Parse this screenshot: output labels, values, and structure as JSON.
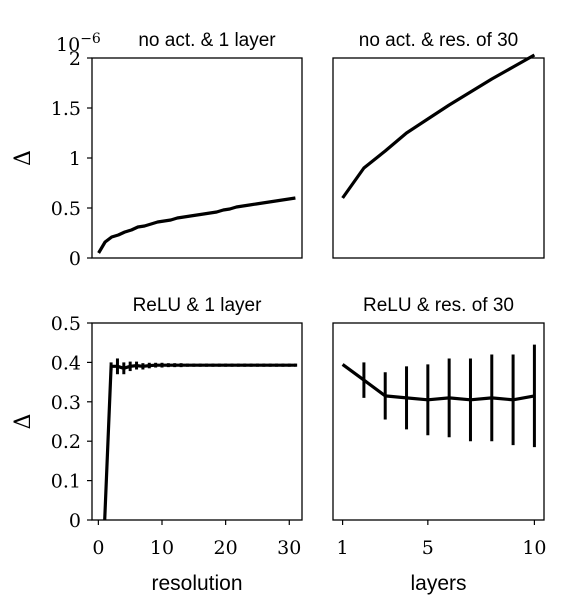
{
  "chart_data": [
    {
      "type": "line",
      "title": "no act. & 1 layer",
      "xlabel": "",
      "ylabel": "Δ",
      "scale_label": "10^{-6}",
      "scale_base": "10",
      "scale_exp": "−6",
      "xlim": [
        0,
        32
      ],
      "ylim": [
        0,
        2.0
      ],
      "xticks": [],
      "yticks": [
        0,
        0.5,
        1,
        1.5,
        2
      ],
      "ytick_labels": [
        "0",
        "0.5",
        "1",
        "1.5",
        "2"
      ],
      "series": [
        {
          "x": [
            1,
            2,
            3,
            4,
            5,
            6,
            7,
            8,
            9,
            10,
            11,
            12,
            13,
            14,
            15,
            16,
            17,
            18,
            19,
            20,
            21,
            22,
            23,
            24,
            25,
            26,
            27,
            28,
            29,
            30,
            31
          ],
          "y": [
            0.05,
            0.16,
            0.21,
            0.23,
            0.26,
            0.28,
            0.31,
            0.32,
            0.34,
            0.36,
            0.37,
            0.38,
            0.4,
            0.41,
            0.42,
            0.43,
            0.44,
            0.45,
            0.46,
            0.48,
            0.49,
            0.51,
            0.52,
            0.53,
            0.54,
            0.55,
            0.56,
            0.57,
            0.58,
            0.59,
            0.6
          ]
        }
      ]
    },
    {
      "type": "line",
      "title": "no act. & res. of 30",
      "xlabel": "",
      "ylabel": "",
      "xlim": [
        0.55,
        10.45
      ],
      "ylim": [
        0,
        2.0
      ],
      "xticks": [],
      "yticks": [],
      "series": [
        {
          "x": [
            1,
            2,
            3,
            4,
            5,
            6,
            7,
            8,
            9,
            10
          ],
          "y": [
            0.6,
            0.9,
            1.07,
            1.25,
            1.39,
            1.53,
            1.66,
            1.79,
            1.91,
            2.03
          ]
        }
      ]
    },
    {
      "type": "line",
      "title": "ReLU & 1 layer",
      "xlabel": "resolution",
      "ylabel": "Δ",
      "xlim": [
        -1,
        32
      ],
      "ylim": [
        0,
        0.5
      ],
      "xticks": [
        0,
        10,
        20,
        30
      ],
      "xtick_labels": [
        "0",
        "10",
        "20",
        "30"
      ],
      "yticks": [
        0,
        0.1,
        0.2,
        0.3,
        0.4,
        0.5
      ],
      "ytick_labels": [
        "0",
        "0.1",
        "0.2",
        "0.3",
        "0.4",
        "0.5"
      ],
      "series": [
        {
          "x": [
            1,
            2,
            3,
            4,
            5,
            6,
            7,
            8,
            9,
            10,
            11,
            12,
            13,
            14,
            15,
            16,
            17,
            18,
            19,
            20,
            21,
            22,
            23,
            24,
            25,
            26,
            27,
            28,
            29,
            30,
            31
          ],
          "y": [
            0.0,
            0.39,
            0.39,
            0.385,
            0.39,
            0.392,
            0.39,
            0.392,
            0.393,
            0.393,
            0.393,
            0.393,
            0.393,
            0.393,
            0.393,
            0.393,
            0.393,
            0.393,
            0.393,
            0.393,
            0.393,
            0.393,
            0.393,
            0.393,
            0.393,
            0.393,
            0.393,
            0.393,
            0.393,
            0.393,
            0.393
          ],
          "err": [
            0,
            0.01,
            0.02,
            0.015,
            0.012,
            0.01,
            0.008,
            0.007,
            0.006,
            0.006,
            0.005,
            0.005,
            0.005,
            0.004,
            0.004,
            0.004,
            0.004,
            0.004,
            0.004,
            0.004,
            0.004,
            0.004,
            0.004,
            0.004,
            0.004,
            0.004,
            0.004,
            0.004,
            0.004,
            0.004,
            0.004
          ]
        }
      ]
    },
    {
      "type": "line",
      "title": "ReLU & res. of 30",
      "xlabel": "layers",
      "ylabel": "",
      "xlim": [
        0.55,
        10.45
      ],
      "ylim": [
        0,
        0.5
      ],
      "xticks": [
        1,
        5,
        10
      ],
      "xtick_labels": [
        "1",
        "5",
        "10"
      ],
      "yticks": [],
      "series": [
        {
          "x": [
            1,
            2,
            3,
            4,
            5,
            6,
            7,
            8,
            9,
            10
          ],
          "y": [
            0.395,
            0.355,
            0.315,
            0.31,
            0.305,
            0.31,
            0.305,
            0.31,
            0.305,
            0.315
          ],
          "err": [
            0,
            0.045,
            0.06,
            0.08,
            0.09,
            0.1,
            0.105,
            0.11,
            0.115,
            0.13
          ]
        }
      ]
    }
  ]
}
